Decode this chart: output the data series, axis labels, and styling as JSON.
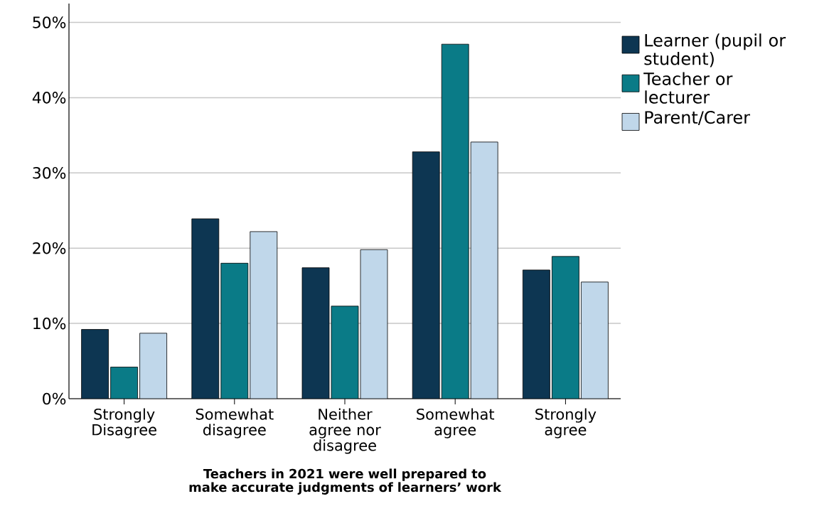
{
  "chart_data": {
    "type": "bar",
    "xlabel": "Teachers in 2021 were well prepared to make accurate judgments of learners’ work",
    "categories": [
      "Strongly Disagree",
      "Somewhat disagree",
      "Neither agree nor disagree",
      "Somewhat agree",
      "Strongly agree"
    ],
    "series": [
      {
        "name": "Learner (pupil or student)",
        "color": "#0d3652",
        "values": [
          9.2,
          23.9,
          17.4,
          32.8,
          17.1
        ]
      },
      {
        "name": "Teacher or lecturer",
        "color": "#0a7b87",
        "values": [
          4.2,
          18.0,
          12.3,
          47.1,
          18.9
        ]
      },
      {
        "name": "Parent/Carer",
        "color": "#c0d7ea",
        "values": [
          8.7,
          22.2,
          19.8,
          34.1,
          15.5
        ]
      }
    ],
    "ylim": [
      0,
      52.5
    ],
    "yticks": [
      {
        "value": 0,
        "label": "0%"
      },
      {
        "value": 10,
        "label": "10%"
      },
      {
        "value": 20,
        "label": "20%"
      },
      {
        "value": 30,
        "label": "30%"
      },
      {
        "value": 40,
        "label": "40%"
      },
      {
        "value": 50,
        "label": "50%"
      }
    ],
    "grid": "y",
    "legend": "top right"
  }
}
